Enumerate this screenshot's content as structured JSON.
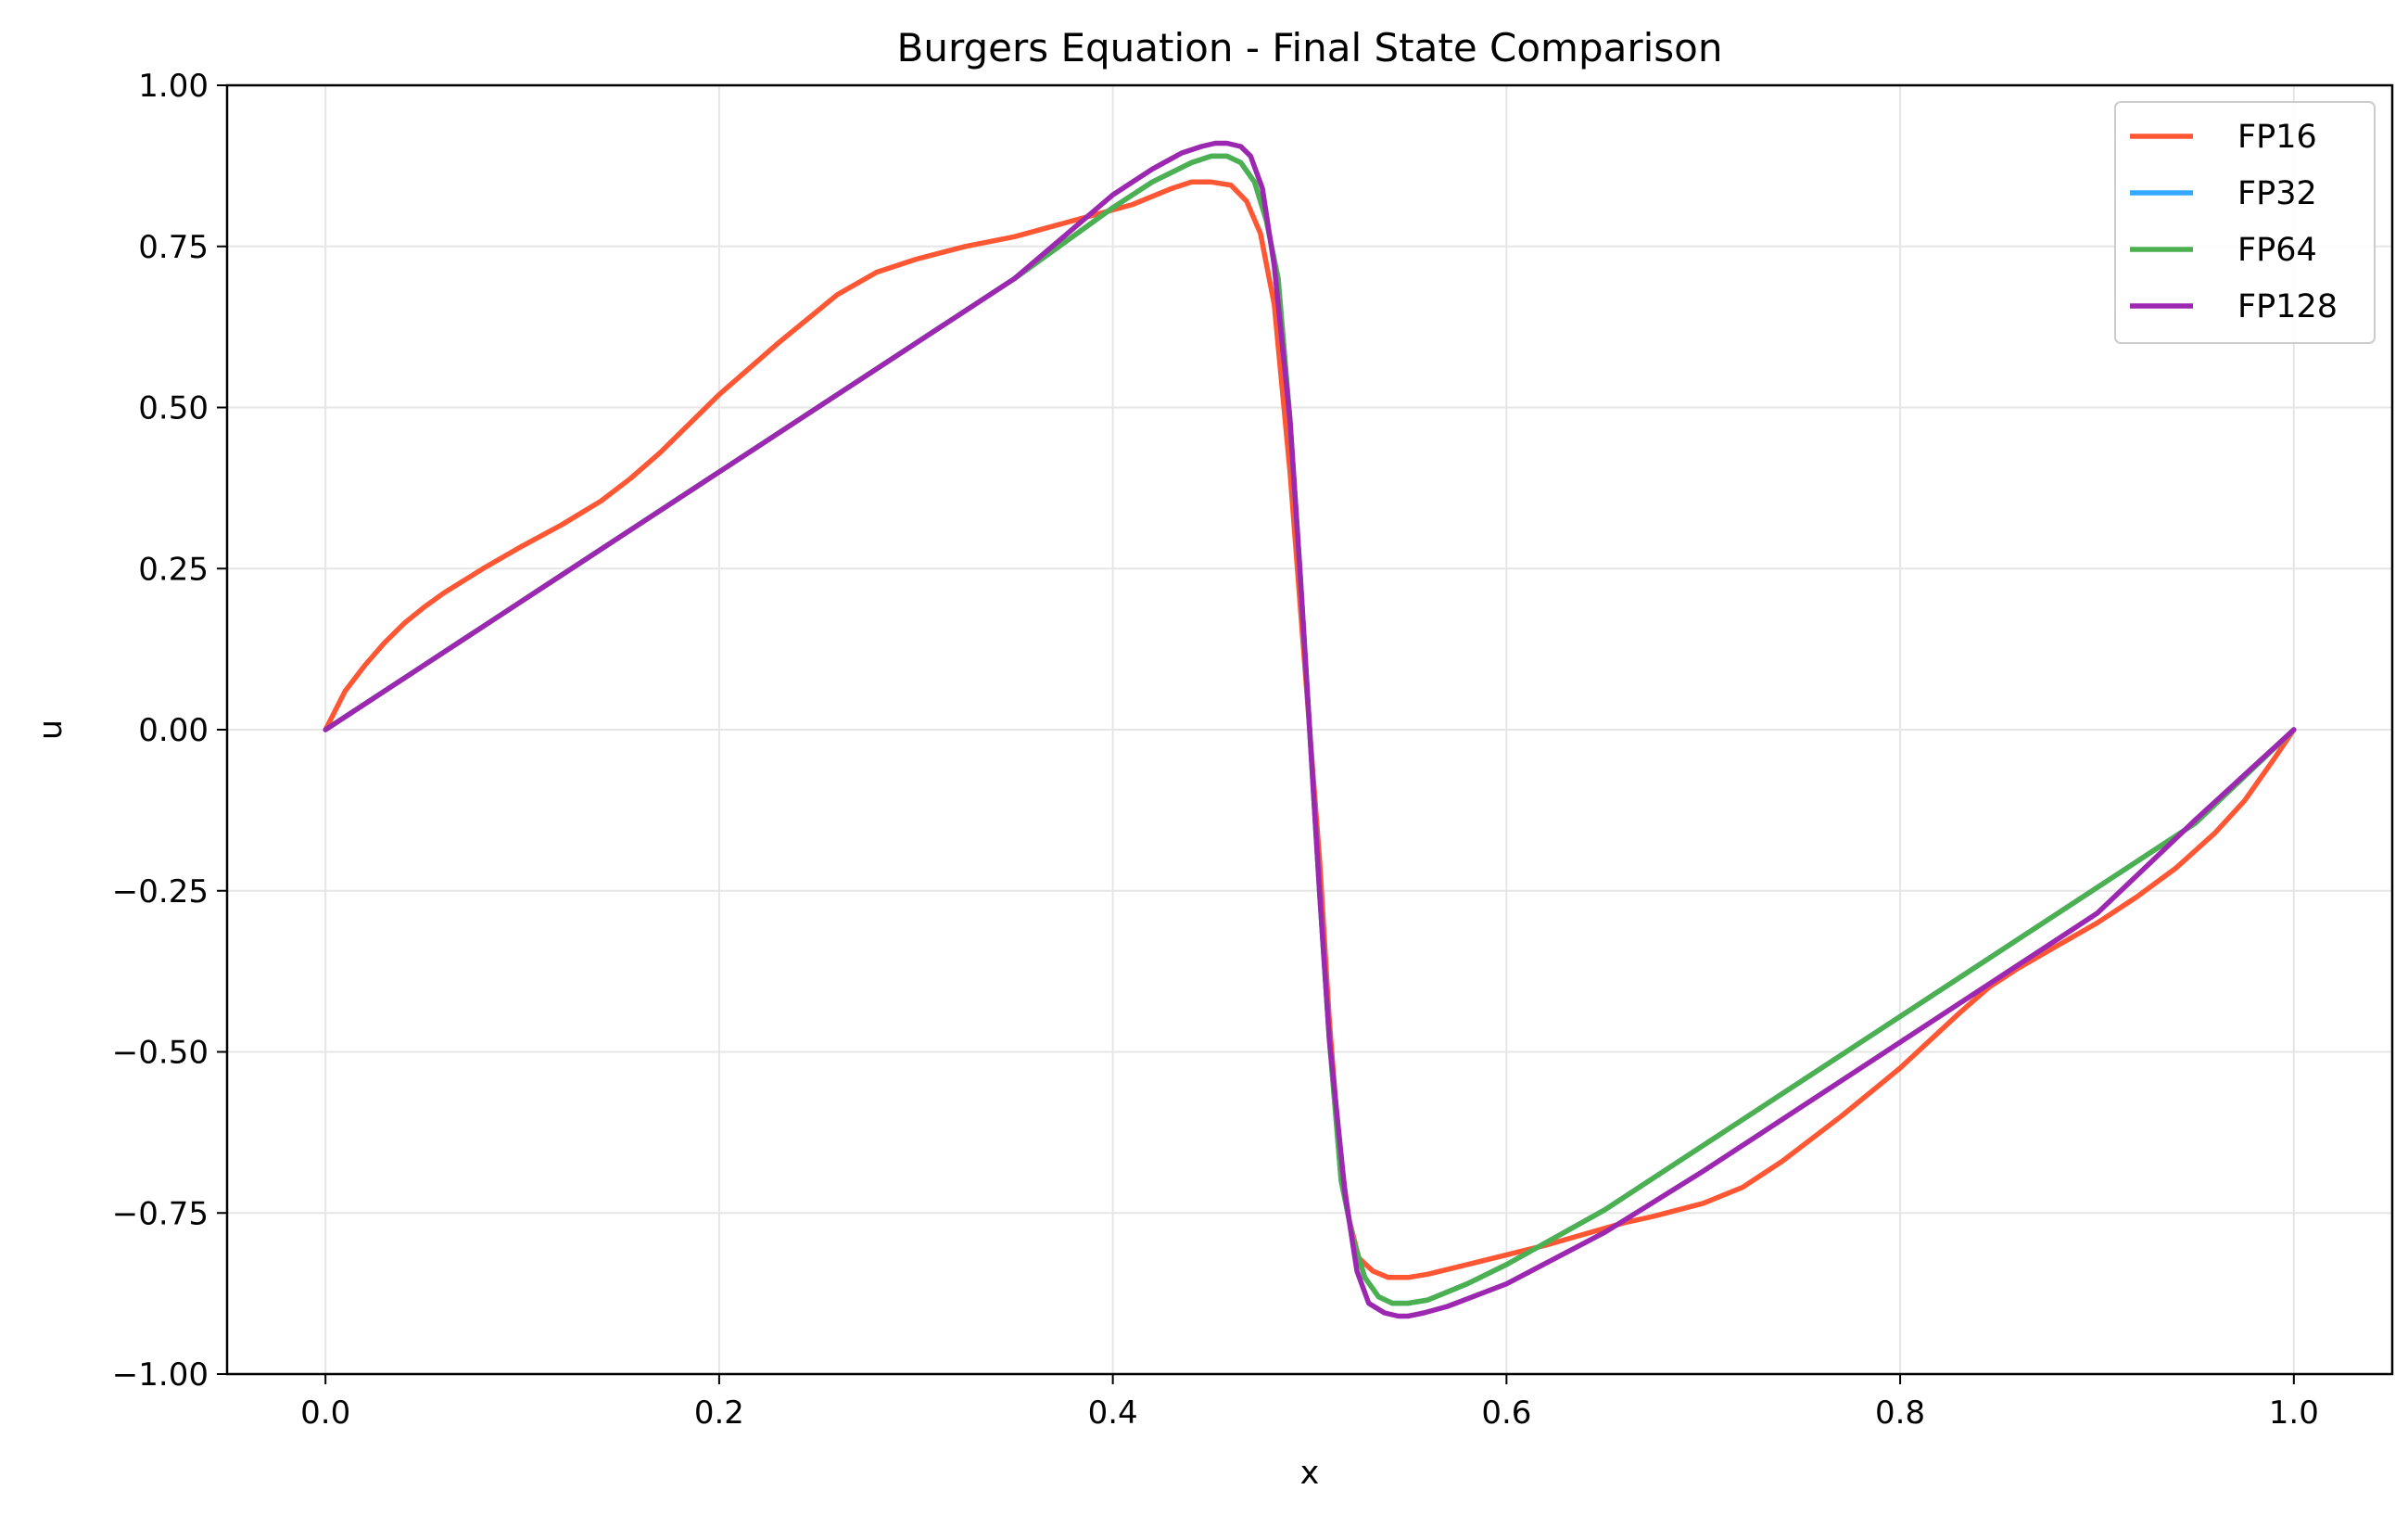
{
  "chart_data": {
    "type": "line",
    "title": "Burgers Equation - Final State Comparison",
    "xlabel": "x",
    "ylabel": "u",
    "xlim": [
      -0.05,
      1.05
    ],
    "ylim": [
      -1.0,
      1.0
    ],
    "grid": true,
    "legend_position": "top-right",
    "x_ticks": [
      "0.0",
      "0.2",
      "0.4",
      "0.6",
      "0.8",
      "1.0"
    ],
    "x_tick_values": [
      0.0,
      0.2,
      0.4,
      0.6,
      0.8,
      1.0
    ],
    "y_ticks": [
      "1.00",
      "0.75",
      "0.50",
      "0.25",
      "0.00",
      "−0.25",
      "−0.50",
      "−0.75",
      "−1.00"
    ],
    "y_tick_values": [
      1.0,
      0.75,
      0.5,
      0.25,
      0.0,
      -0.25,
      -0.5,
      -0.75,
      -1.0
    ],
    "series": [
      {
        "name": "FP16",
        "color": "#ff5733",
        "x": [
          0.0,
          0.01,
          0.02,
          0.03,
          0.04,
          0.05,
          0.06,
          0.08,
          0.1,
          0.12,
          0.14,
          0.155,
          0.17,
          0.2,
          0.23,
          0.26,
          0.28,
          0.29,
          0.3,
          0.325,
          0.35,
          0.38,
          0.41,
          0.43,
          0.44,
          0.45,
          0.46,
          0.468,
          0.475,
          0.482,
          0.49,
          0.495,
          0.5,
          0.505,
          0.51,
          0.515,
          0.52,
          0.525,
          0.532,
          0.54,
          0.55,
          0.56,
          0.58,
          0.62,
          0.66,
          0.675,
          0.7,
          0.72,
          0.74,
          0.77,
          0.8,
          0.83,
          0.845,
          0.86,
          0.88,
          0.9,
          0.92,
          0.94,
          0.96,
          0.975,
          0.99,
          1.0
        ],
        "y": [
          0.0,
          0.06,
          0.1,
          0.135,
          0.165,
          0.19,
          0.212,
          0.25,
          0.285,
          0.318,
          0.355,
          0.39,
          0.43,
          0.52,
          0.6,
          0.675,
          0.71,
          0.72,
          0.73,
          0.75,
          0.765,
          0.79,
          0.815,
          0.84,
          0.85,
          0.85,
          0.845,
          0.82,
          0.77,
          0.66,
          0.4,
          0.2,
          0.0,
          -0.2,
          -0.45,
          -0.65,
          -0.76,
          -0.82,
          -0.84,
          -0.85,
          -0.85,
          -0.845,
          -0.83,
          -0.8,
          -0.765,
          -0.755,
          -0.735,
          -0.71,
          -0.67,
          -0.6,
          -0.525,
          -0.44,
          -0.4,
          -0.37,
          -0.335,
          -0.3,
          -0.26,
          -0.215,
          -0.16,
          -0.11,
          -0.045,
          0.0
        ]
      },
      {
        "name": "FP32",
        "color": "#33a8ff",
        "x": [
          0.0,
          0.05,
          0.1,
          0.15,
          0.2,
          0.25,
          0.3,
          0.35,
          0.4,
          0.42,
          0.44,
          0.45,
          0.458,
          0.465,
          0.472,
          0.478,
          0.484,
          0.49,
          0.495,
          0.5,
          0.505,
          0.51,
          0.516,
          0.522,
          0.528,
          0.535,
          0.542,
          0.55,
          0.56,
          0.58,
          0.6,
          0.65,
          0.7,
          0.75,
          0.8,
          0.85,
          0.9,
          0.95,
          1.0
        ],
        "y": [
          0.0,
          0.1,
          0.2,
          0.3,
          0.4,
          0.5,
          0.6,
          0.7,
          0.81,
          0.85,
          0.88,
          0.89,
          0.89,
          0.88,
          0.85,
          0.79,
          0.7,
          0.48,
          0.25,
          0.0,
          -0.25,
          -0.48,
          -0.7,
          -0.79,
          -0.85,
          -0.88,
          -0.89,
          -0.89,
          -0.885,
          -0.86,
          -0.83,
          -0.745,
          -0.645,
          -0.545,
          -0.445,
          -0.345,
          -0.245,
          -0.145,
          0.0
        ]
      },
      {
        "name": "FP64",
        "color": "#4caf50",
        "x": [
          0.0,
          0.05,
          0.1,
          0.15,
          0.2,
          0.25,
          0.3,
          0.35,
          0.4,
          0.42,
          0.44,
          0.45,
          0.458,
          0.465,
          0.472,
          0.478,
          0.484,
          0.49,
          0.495,
          0.5,
          0.505,
          0.51,
          0.516,
          0.522,
          0.528,
          0.535,
          0.542,
          0.55,
          0.56,
          0.58,
          0.6,
          0.65,
          0.7,
          0.75,
          0.8,
          0.85,
          0.9,
          0.95,
          1.0
        ],
        "y": [
          0.0,
          0.1,
          0.2,
          0.3,
          0.4,
          0.5,
          0.6,
          0.7,
          0.81,
          0.85,
          0.88,
          0.89,
          0.89,
          0.88,
          0.85,
          0.79,
          0.7,
          0.48,
          0.25,
          0.0,
          -0.25,
          -0.48,
          -0.7,
          -0.79,
          -0.85,
          -0.88,
          -0.89,
          -0.89,
          -0.885,
          -0.86,
          -0.83,
          -0.745,
          -0.645,
          -0.545,
          -0.445,
          -0.345,
          -0.245,
          -0.145,
          0.0
        ]
      },
      {
        "name": "FP128",
        "color": "#9c27b0",
        "x": [
          0.0,
          0.05,
          0.1,
          0.15,
          0.2,
          0.25,
          0.3,
          0.35,
          0.4,
          0.42,
          0.435,
          0.445,
          0.452,
          0.458,
          0.465,
          0.47,
          0.476,
          0.482,
          0.49,
          0.495,
          0.5,
          0.505,
          0.51,
          0.518,
          0.524,
          0.53,
          0.538,
          0.545,
          0.55,
          0.558,
          0.57,
          0.6,
          0.65,
          0.7,
          0.75,
          0.8,
          0.85,
          0.9,
          0.95,
          1.0
        ],
        "y": [
          0.0,
          0.1,
          0.2,
          0.3,
          0.4,
          0.5,
          0.6,
          0.7,
          0.83,
          0.87,
          0.895,
          0.905,
          0.91,
          0.91,
          0.905,
          0.89,
          0.84,
          0.72,
          0.48,
          0.25,
          0.0,
          -0.25,
          -0.48,
          -0.72,
          -0.84,
          -0.89,
          -0.905,
          -0.91,
          -0.91,
          -0.905,
          -0.895,
          -0.86,
          -0.78,
          -0.685,
          -0.585,
          -0.485,
          -0.385,
          -0.285,
          -0.14,
          0.0
        ]
      }
    ]
  }
}
